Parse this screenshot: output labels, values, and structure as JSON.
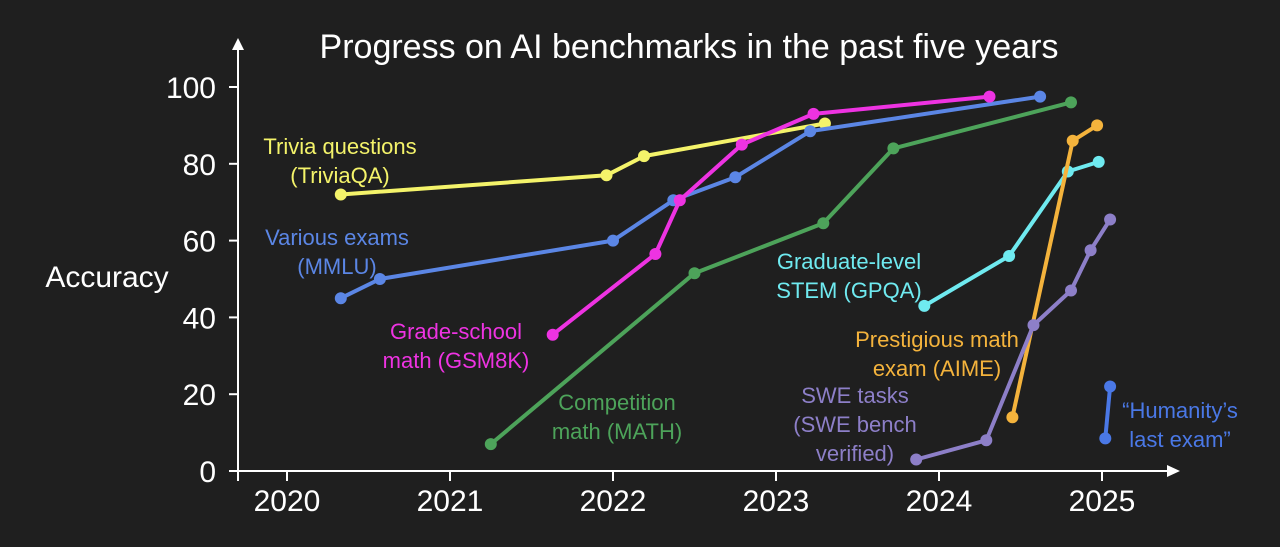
{
  "chart_data": {
    "type": "line",
    "title": "Progress on AI benchmarks in the past five years",
    "ylabel": "Accuracy",
    "xlabel": "",
    "xlim": [
      2019.7,
      2025.25
    ],
    "ylim": [
      0,
      100
    ],
    "x_ticks": [
      2020,
      2021,
      2022,
      2023,
      2024,
      2025
    ],
    "y_ticks": [
      0,
      20,
      40,
      60,
      80,
      100
    ],
    "grid": false,
    "series": [
      {
        "key": "triviaqa",
        "label_lines": [
          "Trivia questions",
          "(TriviaQA)"
        ],
        "color": "#f4f36a",
        "points": [
          [
            2020.33,
            72
          ],
          [
            2021.96,
            77
          ],
          [
            2022.19,
            82
          ],
          [
            2023.3,
            90.5
          ]
        ]
      },
      {
        "key": "mmlu",
        "label_lines": [
          "Various exams",
          "(MMLU)"
        ],
        "color": "#5b86e5",
        "points": [
          [
            2020.33,
            45
          ],
          [
            2020.57,
            50
          ],
          [
            2022.0,
            60
          ],
          [
            2022.37,
            70.5
          ],
          [
            2022.75,
            76.5
          ],
          [
            2023.21,
            88.5
          ],
          [
            2024.62,
            97.5
          ]
        ]
      },
      {
        "key": "gsm8k",
        "label_lines": [
          "Grade-school",
          "math (GSM8K)"
        ],
        "color": "#ee33e2",
        "points": [
          [
            2021.63,
            35.5
          ],
          [
            2022.26,
            56.5
          ],
          [
            2022.41,
            70.5
          ],
          [
            2022.79,
            85
          ],
          [
            2023.23,
            93
          ],
          [
            2024.31,
            97.5
          ]
        ]
      },
      {
        "key": "math",
        "label_lines": [
          "Competition",
          "math (MATH)"
        ],
        "color": "#4da35a",
        "points": [
          [
            2021.25,
            7
          ],
          [
            2022.5,
            51.5
          ],
          [
            2023.29,
            64.5
          ],
          [
            2023.72,
            84
          ],
          [
            2024.81,
            96
          ]
        ]
      },
      {
        "key": "gpqa",
        "label_lines": [
          "Graduate-level",
          "STEM (GPQA)"
        ],
        "color": "#6feaf0",
        "points": [
          [
            2023.91,
            43
          ],
          [
            2024.43,
            56
          ],
          [
            2024.79,
            78
          ],
          [
            2024.98,
            80.5
          ]
        ]
      },
      {
        "key": "aime",
        "label_lines": [
          "Prestigious math",
          "exam (AIME)"
        ],
        "color": "#f4b33c",
        "points": [
          [
            2024.45,
            14
          ],
          [
            2024.82,
            86
          ],
          [
            2024.97,
            90
          ]
        ]
      },
      {
        "key": "swe",
        "label_lines": [
          "SWE tasks",
          "(SWE bench",
          "verified)"
        ],
        "color": "#8d7fc8",
        "points": [
          [
            2023.86,
            3
          ],
          [
            2024.29,
            8
          ],
          [
            2024.58,
            38
          ],
          [
            2024.81,
            47
          ],
          [
            2024.93,
            57.5
          ],
          [
            2025.05,
            65.5
          ]
        ]
      },
      {
        "key": "hle",
        "label_lines": [
          "“Humanity’s",
          "last exam”"
        ],
        "color": "#4a78e6",
        "points": [
          [
            2025.02,
            8.5
          ],
          [
            2025.05,
            22
          ]
        ]
      }
    ]
  }
}
